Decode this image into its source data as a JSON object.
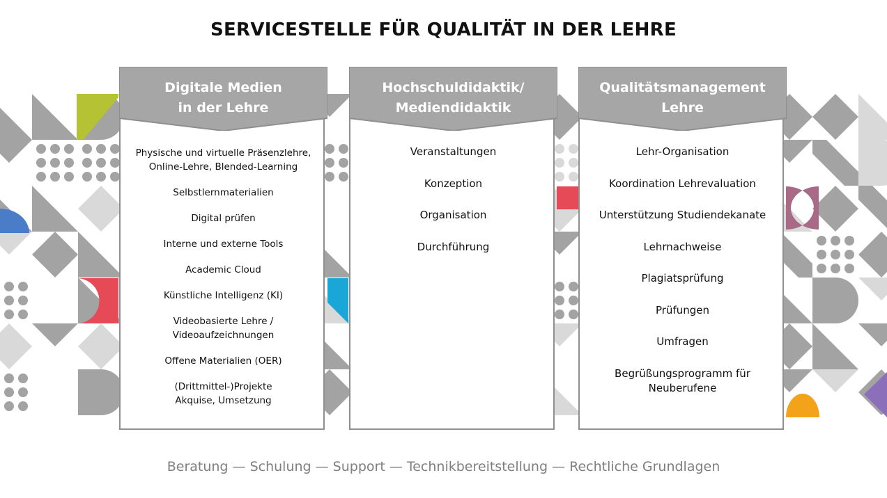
{
  "title": "SERVICESTELLE FÜR QUALITÄT IN DER LEHRE",
  "columns": [
    {
      "heading": "Digitale Medien\nin der Lehre",
      "items": [
        "Physische und virtuelle Präsenzlehre,\nOnline-Lehre,  Blended-Learning",
        "Selbstlernmaterialien",
        "Digital prüfen",
        "Interne und externe Tools",
        "Academic Cloud",
        "Künstliche Intelligenz (KI)",
        "Videobasierte Lehre /\nVideoaufzeichnungen",
        "Offene Materialien (OER)",
        "(Drittmittel-)Projekte\nAkquise, Umsetzung"
      ]
    },
    {
      "heading": "Hochschuldidaktik/\nMediendidaktik",
      "items": [
        "Veranstaltungen",
        "Konzeption",
        "Organisation",
        "Durchführung"
      ]
    },
    {
      "heading": "Qualitätsmanagement\nLehre",
      "items": [
        "Lehr-Organisation",
        "Koordination Lehrevaluation",
        "Unterstützung Studiendekanate",
        "Lehrnachweise",
        "Plagiatsprüfung",
        "Prüfungen",
        "Umfragen",
        "Begrüßungsprogramm für\nNeuberufene"
      ]
    }
  ],
  "footer": "Beratung — Schulung — Support — Technikbereitstellung — Rechtliche Grundlagen",
  "colors": {
    "header_gray": "#a6a6a6",
    "border_gray": "#8f8f8f",
    "pattern_gray": "#a3a3a3",
    "pattern_light": "#d9d9d9",
    "accent_green": "#b5c234",
    "accent_blue": "#4a7cc7",
    "accent_red": "#e64a57",
    "accent_cyan": "#1aa6d6",
    "accent_mauve": "#a86a86",
    "accent_orange": "#f2a31a",
    "accent_purple": "#8b6fba"
  }
}
